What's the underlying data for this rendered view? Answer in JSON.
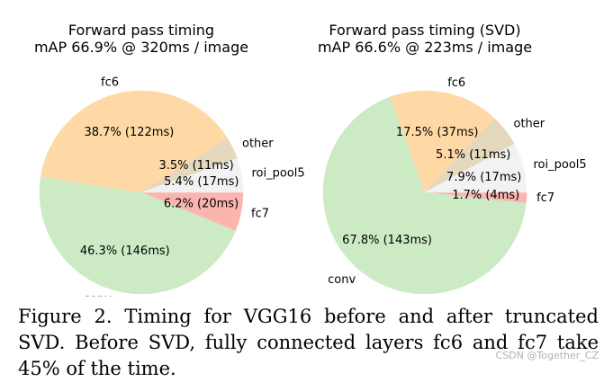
{
  "chart_data": [
    {
      "type": "pie",
      "title": "Forward pass timing",
      "subtitle": "mAP 66.9% @ 320ms / image",
      "start_angle_deg": 0,
      "direction": "clockwise",
      "slices": [
        {
          "name": "fc7",
          "pct": 6.2,
          "ms": 20,
          "label": "6.2% (20ms)",
          "color": "#fbb4ae"
        },
        {
          "name": "conv",
          "pct": 46.3,
          "ms": 146,
          "label": "46.3% (146ms)",
          "color": "#ccebc5"
        },
        {
          "name": "fc6",
          "pct": 38.7,
          "ms": 122,
          "label": "38.7% (122ms)",
          "color": "#fed9a6"
        },
        {
          "name": "other",
          "pct": 3.5,
          "ms": 11,
          "label": "3.5% (11ms)",
          "color": "#e5d8bd"
        },
        {
          "name": "roi_pool5",
          "pct": 5.4,
          "ms": 17,
          "label": "5.4% (17ms)",
          "color": "#f2f2f2"
        }
      ]
    },
    {
      "type": "pie",
      "title": "Forward pass timing (SVD)",
      "subtitle": "mAP 66.6% @ 223ms / image",
      "start_angle_deg": 0,
      "direction": "clockwise",
      "slices": [
        {
          "name": "fc7",
          "pct": 1.7,
          "ms": 4,
          "label": "1.7% (4ms)",
          "color": "#fbb4ae"
        },
        {
          "name": "conv",
          "pct": 67.8,
          "ms": 143,
          "label": "67.8% (143ms)",
          "color": "#ccebc5"
        },
        {
          "name": "fc6",
          "pct": 17.5,
          "ms": 37,
          "label": "17.5% (37ms)",
          "color": "#fed9a6"
        },
        {
          "name": "other",
          "pct": 5.1,
          "ms": 11,
          "label": "5.1% (11ms)",
          "color": "#e5d8bd"
        },
        {
          "name": "roi_pool5",
          "pct": 7.9,
          "ms": 17,
          "label": "7.9% (17ms)",
          "color": "#f2f2f2"
        }
      ]
    }
  ],
  "caption": "Figure 2. Timing for VGG16 before and after truncated SVD. Before SVD, fully connected layers fc6 and fc7 take 45% of the time.",
  "watermark": "CSDN @Together_CZ"
}
